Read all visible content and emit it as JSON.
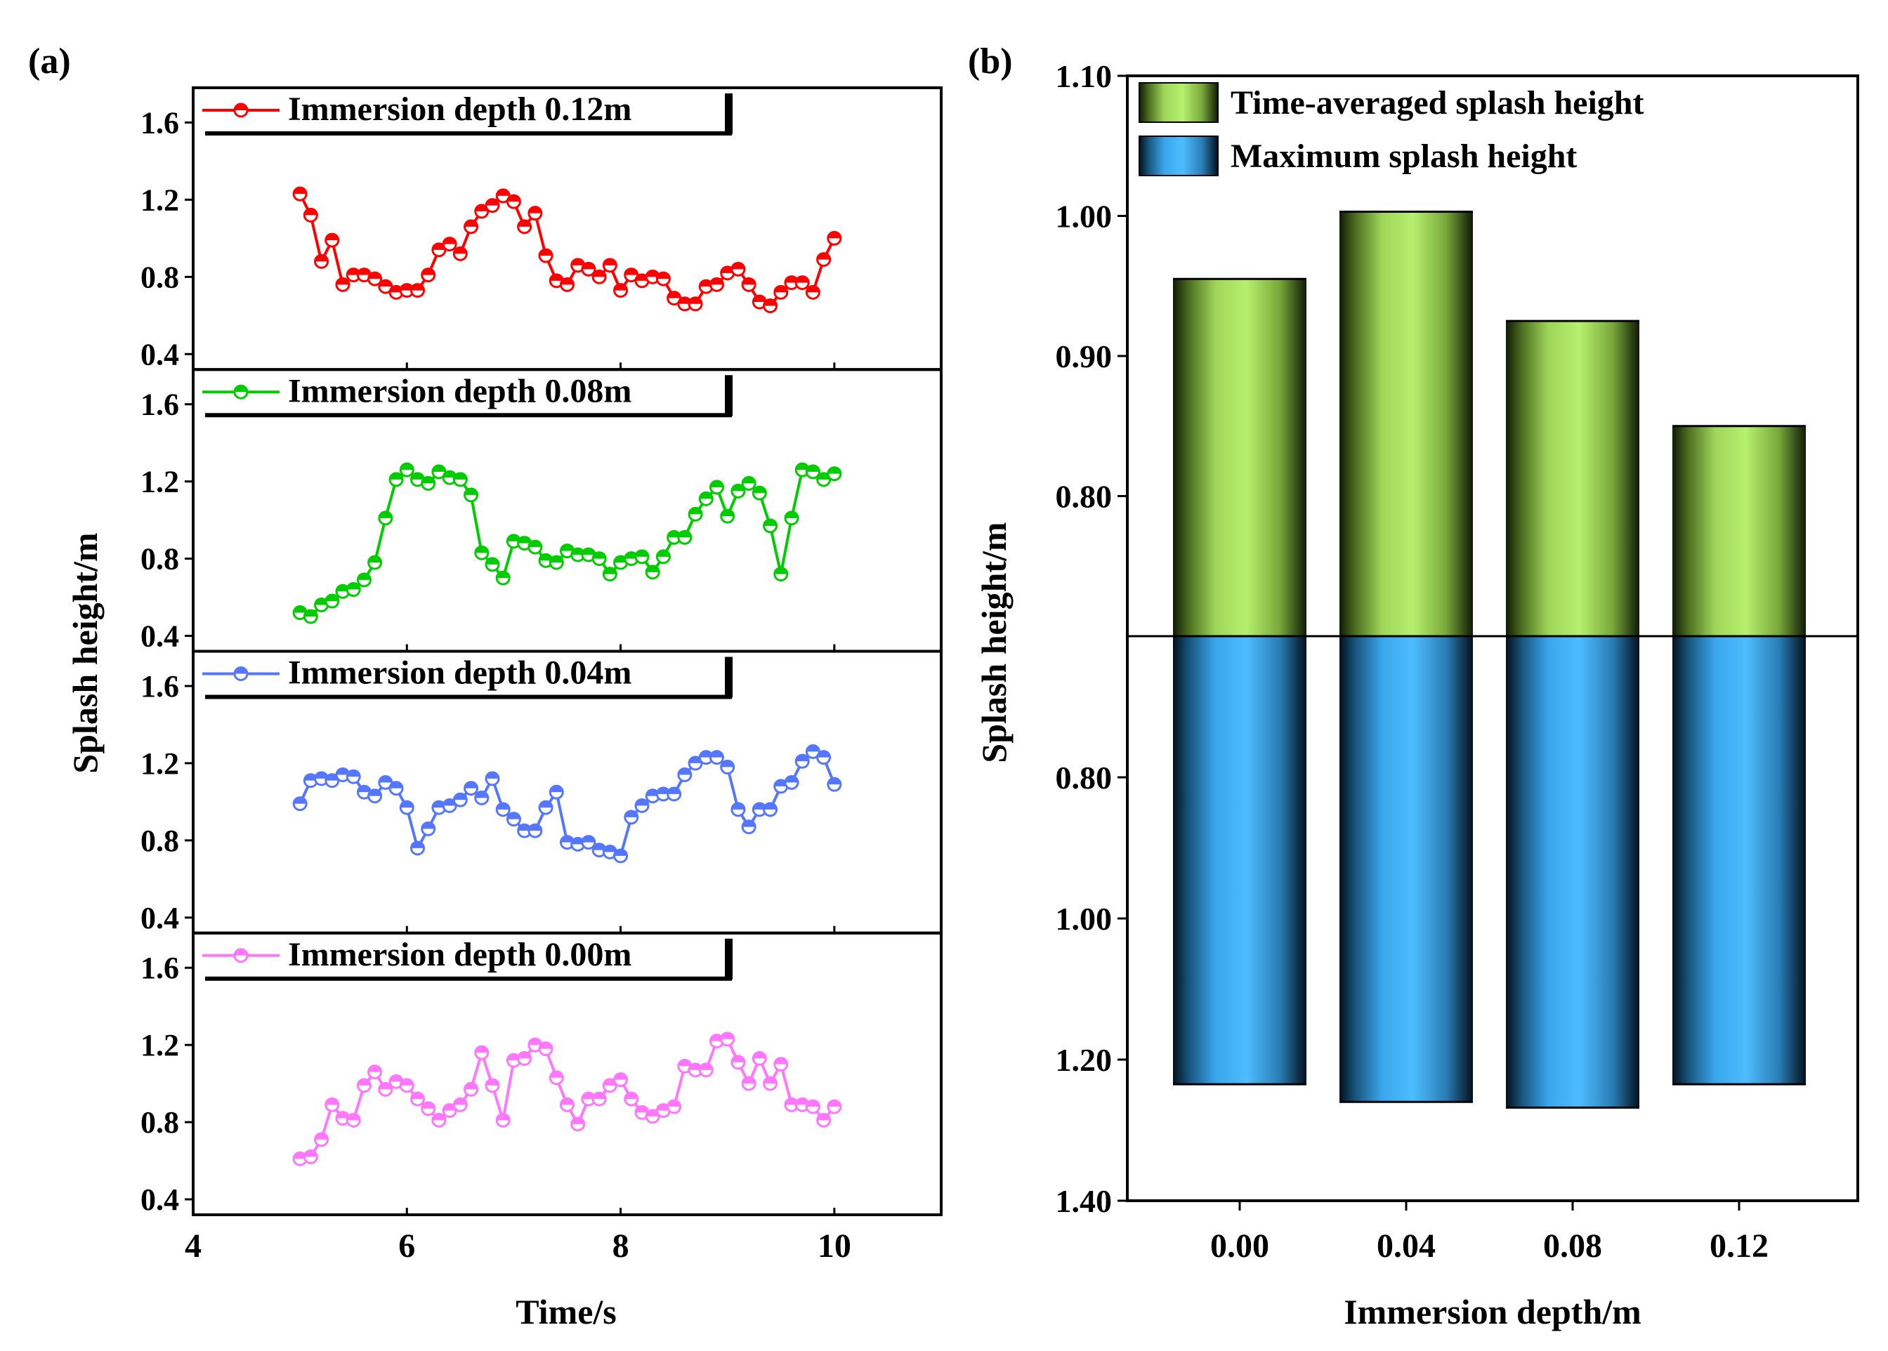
{
  "figure": {
    "panel_a_label": "(a)",
    "panel_b_label": "(b)"
  },
  "chart_data": [
    {
      "type": "line",
      "panel": "(a)",
      "xlabel": "Time/s",
      "ylabel": "Splash height/m",
      "xlim": [
        4,
        11
      ],
      "x_ticks": [
        "4",
        "6",
        "8",
        "10"
      ],
      "y_ticks": [
        "0.4",
        "0.8",
        "1.2",
        "1.6"
      ],
      "ylim": [
        0.32,
        1.78
      ],
      "x_start": 5.0,
      "x_step": 0.1,
      "series": [
        {
          "name": "Immersion depth 0.12m",
          "color": "#ff0000",
          "values": [
            1.23,
            1.12,
            0.88,
            0.99,
            0.76,
            0.81,
            0.81,
            0.79,
            0.75,
            0.72,
            0.73,
            0.73,
            0.81,
            0.94,
            0.97,
            0.92,
            1.06,
            1.14,
            1.17,
            1.22,
            1.19,
            1.06,
            1.13,
            0.91,
            0.78,
            0.76,
            0.86,
            0.84,
            0.8,
            0.86,
            0.73,
            0.81,
            0.78,
            0.8,
            0.79,
            0.69,
            0.66,
            0.66,
            0.75,
            0.76,
            0.82,
            0.84,
            0.76,
            0.67,
            0.65,
            0.72,
            0.77,
            0.77,
            0.72,
            0.89,
            1.0
          ]
        },
        {
          "name": "Immersion depth 0.08m",
          "color": "#00cc00",
          "values": [
            0.52,
            0.5,
            0.56,
            0.58,
            0.63,
            0.64,
            0.69,
            0.78,
            1.01,
            1.21,
            1.26,
            1.21,
            1.19,
            1.25,
            1.22,
            1.21,
            1.13,
            0.83,
            0.77,
            0.7,
            0.89,
            0.88,
            0.86,
            0.79,
            0.78,
            0.84,
            0.82,
            0.82,
            0.8,
            0.72,
            0.78,
            0.8,
            0.81,
            0.73,
            0.81,
            0.91,
            0.91,
            1.03,
            1.11,
            1.17,
            1.02,
            1.15,
            1.19,
            1.14,
            0.97,
            0.72,
            1.01,
            1.26,
            1.25,
            1.21,
            1.24
          ]
        },
        {
          "name": "Immersion depth 0.04m",
          "color": "#5577ff",
          "values": [
            0.99,
            1.11,
            1.12,
            1.11,
            1.14,
            1.13,
            1.05,
            1.03,
            1.1,
            1.07,
            0.97,
            0.76,
            0.86,
            0.97,
            0.98,
            1.01,
            1.07,
            1.02,
            1.12,
            0.96,
            0.91,
            0.85,
            0.85,
            0.97,
            1.05,
            0.79,
            0.78,
            0.79,
            0.75,
            0.74,
            0.72,
            0.92,
            0.98,
            1.03,
            1.04,
            1.04,
            1.14,
            1.2,
            1.23,
            1.23,
            1.18,
            0.96,
            0.87,
            0.96,
            0.96,
            1.08,
            1.1,
            1.21,
            1.26,
            1.23,
            1.09
          ]
        },
        {
          "name": "Immersion depth 0.00m",
          "color": "#ff77ff",
          "values": [
            0.61,
            0.62,
            0.71,
            0.89,
            0.82,
            0.81,
            0.99,
            1.06,
            0.97,
            1.01,
            0.99,
            0.92,
            0.87,
            0.81,
            0.86,
            0.89,
            0.97,
            1.16,
            0.99,
            0.81,
            1.12,
            1.13,
            1.2,
            1.18,
            1.03,
            0.89,
            0.79,
            0.92,
            0.92,
            0.99,
            1.02,
            0.92,
            0.85,
            0.83,
            0.86,
            0.88,
            1.09,
            1.07,
            1.07,
            1.22,
            1.23,
            1.11,
            1.0,
            1.13,
            1.0,
            1.1,
            0.89,
            0.89,
            0.88,
            0.81,
            0.88
          ]
        }
      ]
    },
    {
      "type": "bar",
      "panel": "(b)",
      "xlabel": "Immersion depth/m",
      "ylabel": "Splash height/m",
      "categories": [
        "0.00",
        "0.04",
        "0.08",
        "0.12"
      ],
      "top_axis": {
        "ylim": [
          0.7,
          1.1
        ],
        "ticks": [
          "0.80",
          "0.90",
          "1.00",
          "1.10"
        ]
      },
      "bottom_axis": {
        "ylim": [
          0.6,
          1.4
        ],
        "inverted": true,
        "ticks": [
          "0.80",
          "1.00",
          "1.20",
          "1.40"
        ]
      },
      "series": [
        {
          "name": "Time-averaged splash height",
          "color": "#b2ec6a",
          "values": [
            0.955,
            1.003,
            0.925,
            0.85
          ]
        },
        {
          "name": "Maximum splash height",
          "color": "#48b6ff",
          "values": [
            1.235,
            1.26,
            1.268,
            1.235
          ]
        }
      ]
    }
  ]
}
